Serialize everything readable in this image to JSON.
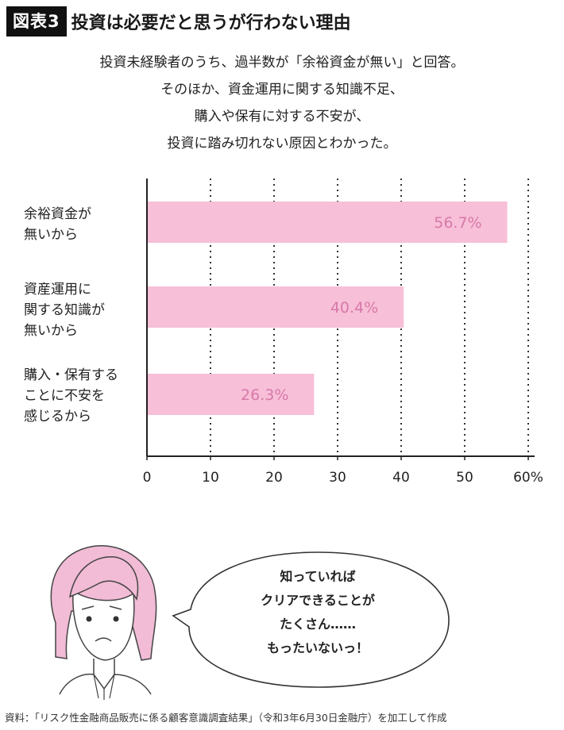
{
  "header": {
    "badge": "図表3",
    "title": "投資は必要だと思うが行わない理由"
  },
  "description": [
    "投資未経験者のうち、過半数が「余裕資金が無い」と回答。",
    "そのほか、資金運用に関する知識不足、",
    "購入や保有に対する不安が、",
    "投資に踏み切れない原因とわかった。"
  ],
  "chart_data": {
    "type": "bar",
    "orientation": "horizontal",
    "categories": [
      "余裕資金が\n無いから",
      "資産運用に\n関する知識が\n無いから",
      "購入・保有する\nことに不安を\n感じるから"
    ],
    "values": [
      56.7,
      40.4,
      26.3
    ],
    "value_labels": [
      "56.7%",
      "40.4%",
      "26.3%"
    ],
    "x_ticks": [
      "0",
      "10",
      "20",
      "30",
      "40",
      "50",
      "60%"
    ],
    "xlim": [
      0,
      60
    ],
    "grid": "vertical dotted",
    "bar_color": "#f7bfd8",
    "label_color": "#d879a8"
  },
  "speech_bubble": [
    "知っていれば",
    "クリアできることが",
    "たくさん……",
    "もったいないっ！"
  ],
  "illustration": {
    "hair_color": "#f2bcd6"
  },
  "footer": {
    "source": "資料：「リスク性金融商品販売に係る顧客意識調査結果」（令和3年6月30日金融庁）を加工して作成"
  }
}
